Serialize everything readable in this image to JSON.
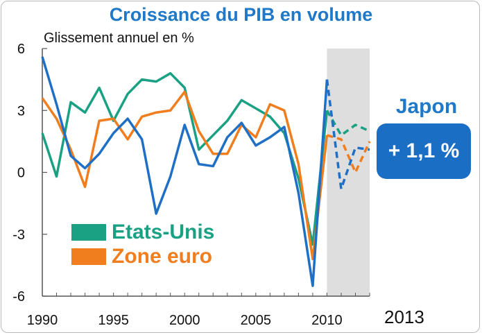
{
  "chart_data": {
    "type": "line",
    "title": "Croissance du PIB en volume",
    "subtitle": "Glissement annuel en %",
    "ylim": [
      -6,
      6
    ],
    "y_ticks": [
      "6",
      "3",
      "0",
      "-3",
      "-6"
    ],
    "x_ticks": [
      "1990",
      "1995",
      "2000",
      "2005",
      "2010"
    ],
    "extra_x_label": "2013",
    "grid": false,
    "shaded_forecast_region": [
      2010,
      2013
    ],
    "legend_position": "bottom-left",
    "legend": [
      "Etats-Unis",
      "Zone euro"
    ],
    "callout": {
      "title": "Japon",
      "value": "+ 1,1 %"
    },
    "series": [
      {
        "name": "Etats-Unis",
        "color": "#1aa083",
        "x": [
          1990,
          1991,
          1992,
          1993,
          1994,
          1995,
          1996,
          1997,
          1998,
          1999,
          2000,
          2001,
          2002,
          2003,
          2004,
          2005,
          2006,
          2007,
          2008,
          2009,
          2010
        ],
        "values": [
          1.9,
          -0.2,
          3.4,
          2.9,
          4.1,
          2.5,
          3.8,
          4.5,
          4.4,
          4.8,
          4.1,
          1.1,
          1.8,
          2.5,
          3.5,
          3.1,
          2.7,
          1.9,
          -0.3,
          -3.5,
          3.0
        ],
        "forecast_x": [
          2010,
          2011,
          2012,
          2013
        ],
        "forecast_values": [
          3.0,
          1.8,
          2.3,
          2.0
        ]
      },
      {
        "name": "Zone euro",
        "color": "#f07d1e",
        "x": [
          1990,
          1991,
          1992,
          1993,
          1994,
          1995,
          1996,
          1997,
          1998,
          1999,
          2000,
          2001,
          2002,
          2003,
          2004,
          2005,
          2006,
          2007,
          2008,
          2009,
          2010
        ],
        "values": [
          3.6,
          2.6,
          1.1,
          -0.7,
          2.5,
          2.6,
          1.6,
          2.7,
          2.9,
          3.0,
          3.9,
          2.0,
          0.9,
          0.9,
          2.3,
          1.7,
          3.3,
          3.0,
          0.4,
          -4.2,
          1.8
        ],
        "forecast_x": [
          2010,
          2011,
          2012,
          2013
        ],
        "forecast_values": [
          1.8,
          1.6,
          0.0,
          1.5
        ]
      },
      {
        "name": "Japon",
        "color": "#1f6fc5",
        "x": [
          1990,
          1991,
          1992,
          1993,
          1994,
          1995,
          1996,
          1997,
          1998,
          1999,
          2000,
          2001,
          2002,
          2003,
          2004,
          2005,
          2006,
          2007,
          2008,
          2009,
          2010
        ],
        "values": [
          5.6,
          3.3,
          0.8,
          0.2,
          0.9,
          1.9,
          2.6,
          1.6,
          -2.0,
          -0.2,
          2.3,
          0.4,
          0.3,
          1.7,
          2.4,
          1.3,
          1.7,
          2.2,
          -1.0,
          -5.5,
          4.5
        ],
        "forecast_x": [
          2010,
          2011,
          2012,
          2013
        ],
        "forecast_values": [
          4.5,
          -0.8,
          1.2,
          1.1
        ]
      }
    ]
  }
}
